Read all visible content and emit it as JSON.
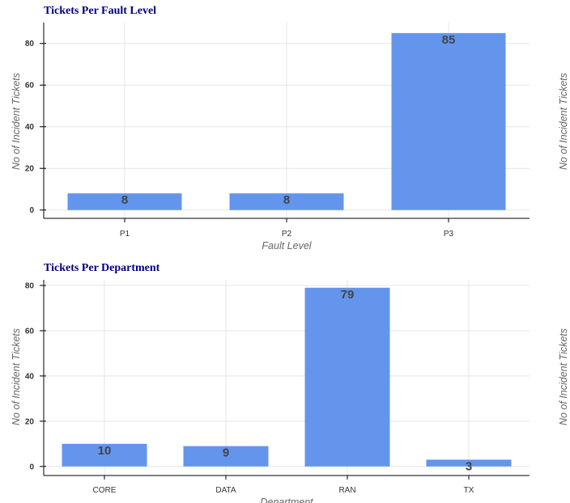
{
  "colors": {
    "bar": "#6495ED",
    "title": "#000080",
    "grid": "#e5e5e5",
    "axis": "#000000"
  },
  "chart_data": [
    {
      "type": "bar",
      "title": "Tickets Per Fault Level",
      "categories": [
        "P1",
        "P2",
        "P3"
      ],
      "values": [
        8,
        8,
        85
      ],
      "value_labels": [
        "8",
        "8",
        "85"
      ],
      "xlabel": "Fault Level",
      "ylabel": "No of Incident Tickets",
      "right_ylabel": "No of Incident Tickets",
      "ylim": [
        -4,
        90
      ],
      "yticks": [
        0,
        20,
        40,
        60,
        80
      ],
      "ytick_labels": [
        "0",
        "20",
        "40",
        "60",
        "80"
      ],
      "grid": true,
      "legend": "none"
    },
    {
      "type": "bar",
      "title": "Tickets Per Department",
      "categories": [
        "CORE",
        "DATA",
        "RAN",
        "TX"
      ],
      "values": [
        10,
        9,
        79,
        3
      ],
      "value_labels": [
        "10",
        "9",
        "79",
        "3"
      ],
      "xlabel": "Department",
      "ylabel": "No of Incident Tickets",
      "right_ylabel": "No of Incident Tickets",
      "ylim": [
        -4,
        82.5
      ],
      "yticks": [
        0,
        20,
        40,
        60,
        80
      ],
      "ytick_labels": [
        "0",
        "20",
        "40",
        "60",
        "80"
      ],
      "grid": true,
      "legend": "none"
    }
  ]
}
